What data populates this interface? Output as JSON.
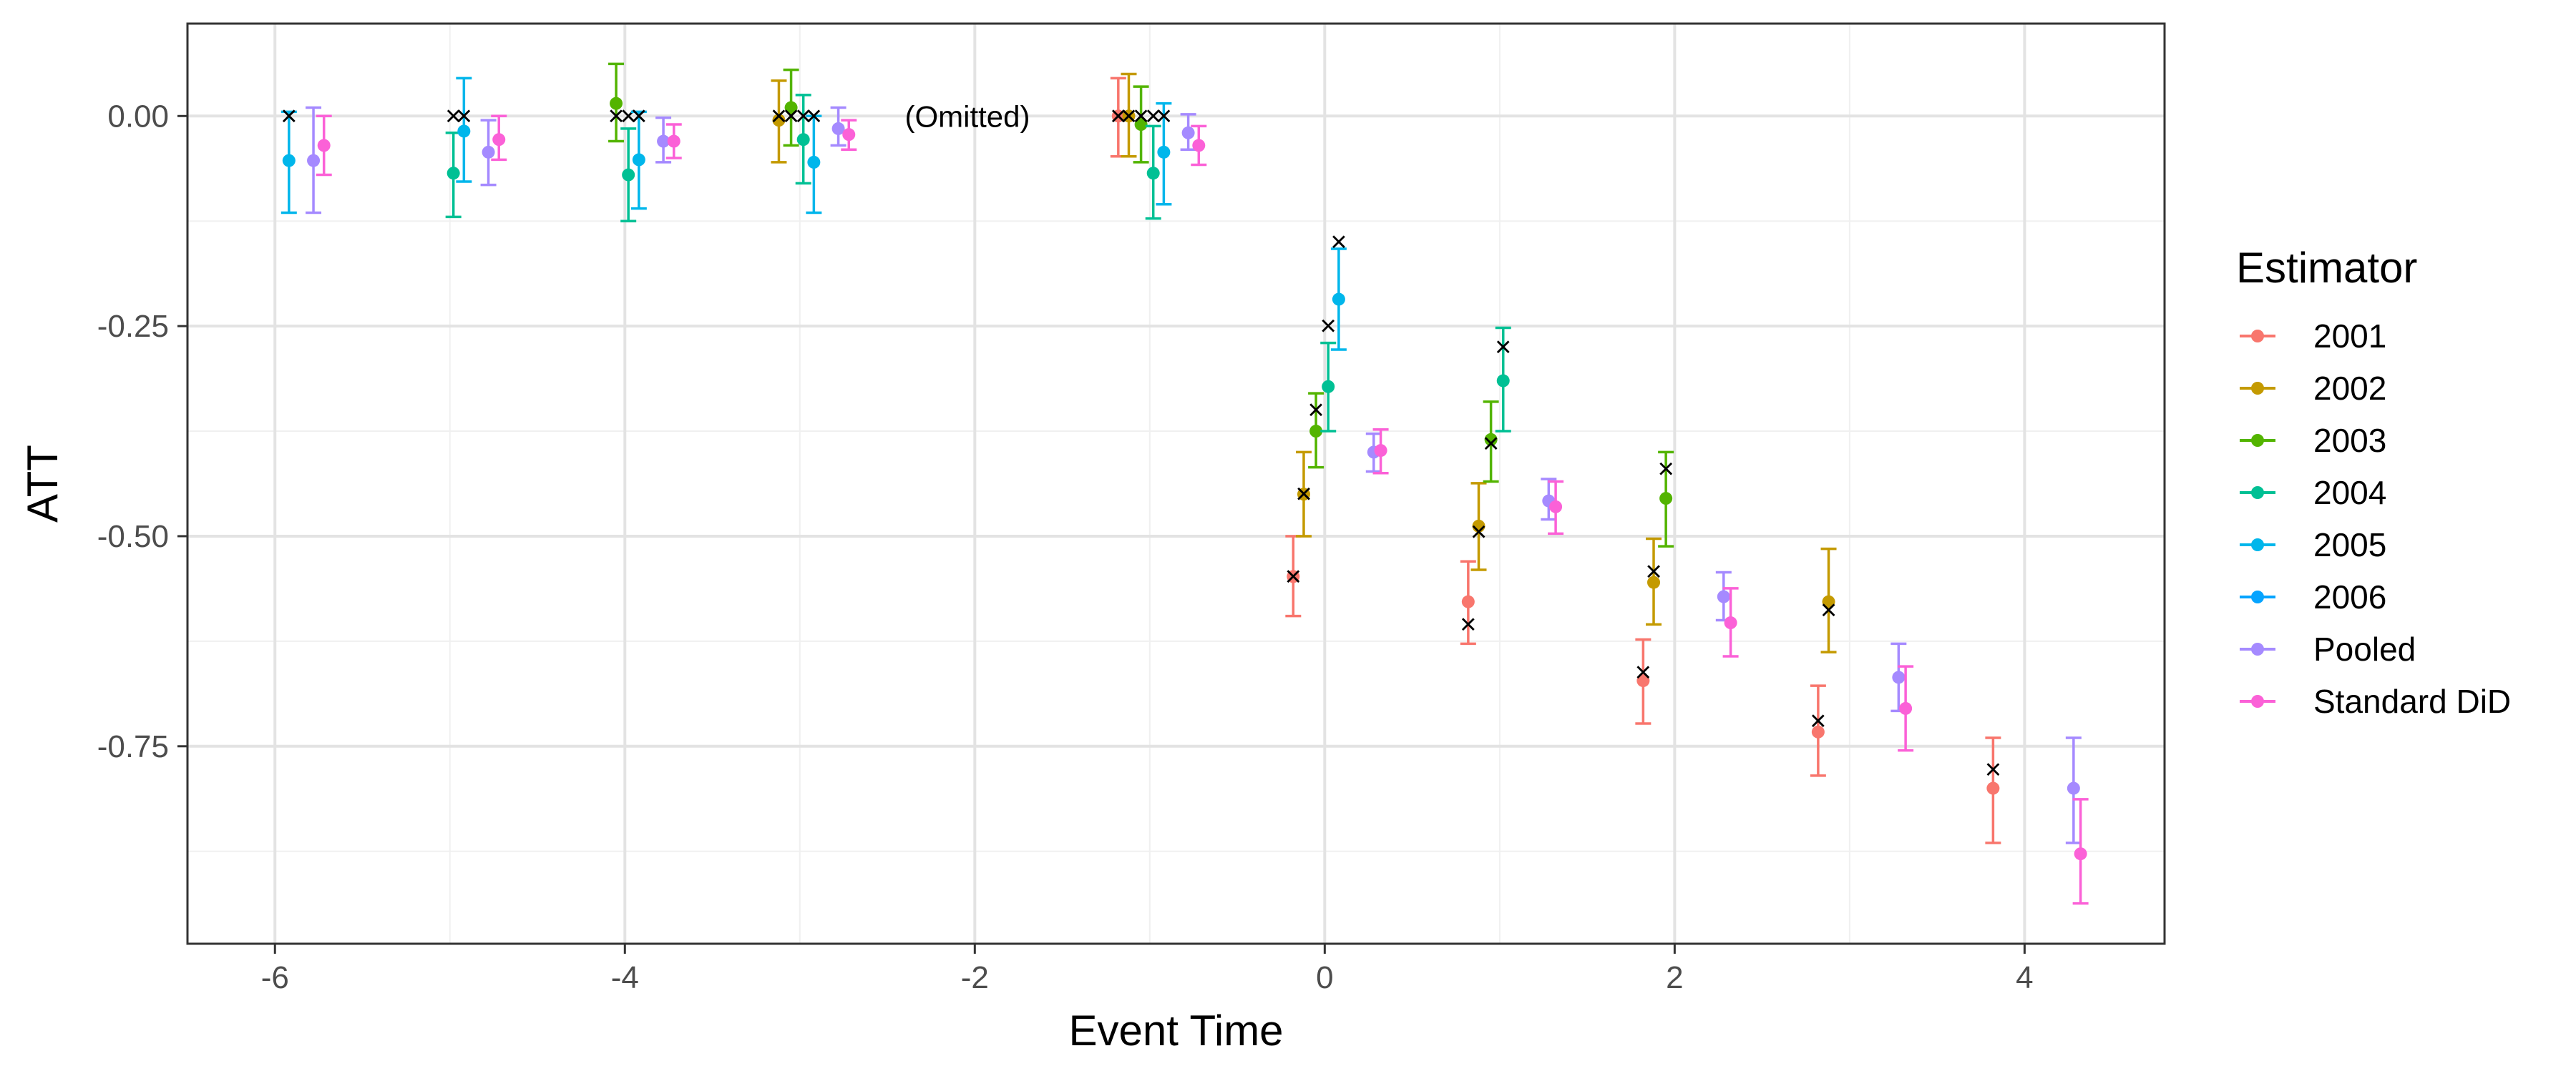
{
  "chart_data": {
    "type": "scatter",
    "xlabel": "Event Time",
    "ylabel": "ATT",
    "xlim": [
      -6.5,
      4.8
    ],
    "ylim": [
      -0.985,
      0.11
    ],
    "x_ticks": [
      -6,
      -4,
      -2,
      0,
      2,
      4
    ],
    "x_tick_labels": [
      "-6",
      "-4",
      "-2",
      "0",
      "2",
      "4"
    ],
    "y_ticks": [
      0.0,
      -0.25,
      -0.5,
      -0.75
    ],
    "y_tick_labels": [
      "0.00",
      "-0.25",
      "-0.50",
      "-0.75"
    ],
    "grid": true,
    "legend": {
      "title": "Estimator",
      "position": "right"
    },
    "annotations": [
      {
        "text": "(Omitted)",
        "x": -2.4,
        "y": 0.0
      }
    ],
    "true_marker": "×",
    "series": [
      {
        "name": "2001",
        "color": "#F8766D",
        "points": [
          {
            "x": -1.18,
            "y": 0.0,
            "lo": -0.048,
            "hi": 0.045,
            "truth": 0.0
          },
          {
            "x": -0.18,
            "y": -0.548,
            "lo": -0.595,
            "hi": -0.5,
            "truth": -0.548
          },
          {
            "x": 0.82,
            "y": -0.578,
            "lo": -0.628,
            "hi": -0.53,
            "truth": -0.605
          },
          {
            "x": 1.82,
            "y": -0.672,
            "lo": -0.723,
            "hi": -0.623,
            "truth": -0.662
          },
          {
            "x": 2.82,
            "y": -0.733,
            "lo": -0.785,
            "hi": -0.678,
            "truth": -0.72
          },
          {
            "x": 3.82,
            "y": -0.8,
            "lo": -0.865,
            "hi": -0.74,
            "truth": -0.778
          }
        ]
      },
      {
        "name": "2002",
        "color": "#C49A00",
        "points": [
          {
            "x": -3.12,
            "y": -0.005,
            "lo": -0.055,
            "hi": 0.042,
            "truth": 0.0
          },
          {
            "x": -1.12,
            "y": 0.0,
            "lo": -0.048,
            "hi": 0.05,
            "truth": 0.0
          },
          {
            "x": -0.12,
            "y": -0.45,
            "lo": -0.5,
            "hi": -0.4,
            "truth": -0.45
          },
          {
            "x": 0.88,
            "y": -0.488,
            "lo": -0.54,
            "hi": -0.437,
            "truth": -0.495
          },
          {
            "x": 1.88,
            "y": -0.555,
            "lo": -0.605,
            "hi": -0.503,
            "truth": -0.542
          },
          {
            "x": 2.88,
            "y": -0.578,
            "lo": -0.638,
            "hi": -0.515,
            "truth": -0.588
          }
        ]
      },
      {
        "name": "2003",
        "color": "#53B400",
        "points": [
          {
            "x": -4.05,
            "y": 0.015,
            "lo": -0.03,
            "hi": 0.062,
            "truth": 0.0
          },
          {
            "x": -3.05,
            "y": 0.01,
            "lo": -0.035,
            "hi": 0.055,
            "truth": 0.0
          },
          {
            "x": -1.05,
            "y": -0.01,
            "lo": -0.055,
            "hi": 0.035,
            "truth": 0.0
          },
          {
            "x": -0.05,
            "y": -0.375,
            "lo": -0.418,
            "hi": -0.33,
            "truth": -0.35
          },
          {
            "x": 0.95,
            "y": -0.385,
            "lo": -0.435,
            "hi": -0.34,
            "truth": -0.39
          },
          {
            "x": 1.95,
            "y": -0.455,
            "lo": -0.512,
            "hi": -0.4,
            "truth": -0.42
          }
        ]
      },
      {
        "name": "2004",
        "color": "#00C094",
        "points": [
          {
            "x": -4.98,
            "y": -0.068,
            "lo": -0.12,
            "hi": -0.02,
            "truth": 0.0
          },
          {
            "x": -3.98,
            "y": -0.07,
            "lo": -0.125,
            "hi": -0.015,
            "truth": 0.0
          },
          {
            "x": -2.98,
            "y": -0.028,
            "lo": -0.08,
            "hi": 0.025,
            "truth": 0.0
          },
          {
            "x": -0.98,
            "y": -0.068,
            "lo": -0.122,
            "hi": -0.012,
            "truth": 0.0
          },
          {
            "x": 0.02,
            "y": -0.322,
            "lo": -0.375,
            "hi": -0.27,
            "truth": -0.25
          },
          {
            "x": 1.02,
            "y": -0.315,
            "lo": -0.375,
            "hi": -0.252,
            "truth": -0.275
          }
        ]
      },
      {
        "name": "2005",
        "color": "#00B6EB",
        "points": [
          {
            "x": -5.92,
            "y": -0.053,
            "lo": -0.115,
            "hi": 0.005,
            "truth": 0.0
          },
          {
            "x": -4.92,
            "y": -0.018,
            "lo": -0.078,
            "hi": 0.045,
            "truth": 0.0
          },
          {
            "x": -3.92,
            "y": -0.052,
            "lo": -0.11,
            "hi": 0.005,
            "truth": 0.0
          },
          {
            "x": -2.92,
            "y": -0.055,
            "lo": -0.115,
            "hi": 0.0,
            "truth": 0.0
          },
          {
            "x": -0.92,
            "y": -0.043,
            "lo": -0.105,
            "hi": 0.015,
            "truth": 0.0
          },
          {
            "x": 0.08,
            "y": -0.218,
            "lo": -0.278,
            "hi": -0.158,
            "truth": -0.15
          }
        ]
      },
      {
        "name": "2006",
        "color": "#06A4FF",
        "points": []
      },
      {
        "name": "Pooled",
        "color": "#A58AFF",
        "points": [
          {
            "x": -5.78,
            "y": -0.053,
            "lo": -0.115,
            "hi": 0.01
          },
          {
            "x": -4.78,
            "y": -0.043,
            "lo": -0.082,
            "hi": -0.005
          },
          {
            "x": -3.78,
            "y": -0.03,
            "lo": -0.055,
            "hi": -0.002
          },
          {
            "x": -2.78,
            "y": -0.015,
            "lo": -0.035,
            "hi": 0.01
          },
          {
            "x": -0.78,
            "y": -0.02,
            "lo": -0.04,
            "hi": 0.002
          },
          {
            "x": 0.28,
            "y": -0.4,
            "lo": -0.423,
            "hi": -0.378
          },
          {
            "x": 1.28,
            "y": -0.458,
            "lo": -0.48,
            "hi": -0.432
          },
          {
            "x": 2.28,
            "y": -0.572,
            "lo": -0.6,
            "hi": -0.543
          },
          {
            "x": 3.28,
            "y": -0.668,
            "lo": -0.708,
            "hi": -0.628
          },
          {
            "x": 4.28,
            "y": -0.8,
            "lo": -0.865,
            "hi": -0.74
          }
        ]
      },
      {
        "name": "Standard DiD",
        "color": "#FB61D7",
        "points": [
          {
            "x": -5.72,
            "y": -0.035,
            "lo": -0.07,
            "hi": 0.0
          },
          {
            "x": -4.72,
            "y": -0.028,
            "lo": -0.052,
            "hi": 0.0
          },
          {
            "x": -3.72,
            "y": -0.03,
            "lo": -0.05,
            "hi": -0.01
          },
          {
            "x": -2.72,
            "y": -0.022,
            "lo": -0.04,
            "hi": -0.005
          },
          {
            "x": -0.72,
            "y": -0.035,
            "lo": -0.058,
            "hi": -0.012
          },
          {
            "x": 0.32,
            "y": -0.398,
            "lo": -0.425,
            "hi": -0.373
          },
          {
            "x": 1.32,
            "y": -0.465,
            "lo": -0.497,
            "hi": -0.435
          },
          {
            "x": 2.32,
            "y": -0.603,
            "lo": -0.643,
            "hi": -0.562
          },
          {
            "x": 3.32,
            "y": -0.705,
            "lo": -0.755,
            "hi": -0.655
          },
          {
            "x": 4.32,
            "y": -0.878,
            "lo": -0.937,
            "hi": -0.813
          }
        ]
      }
    ]
  }
}
